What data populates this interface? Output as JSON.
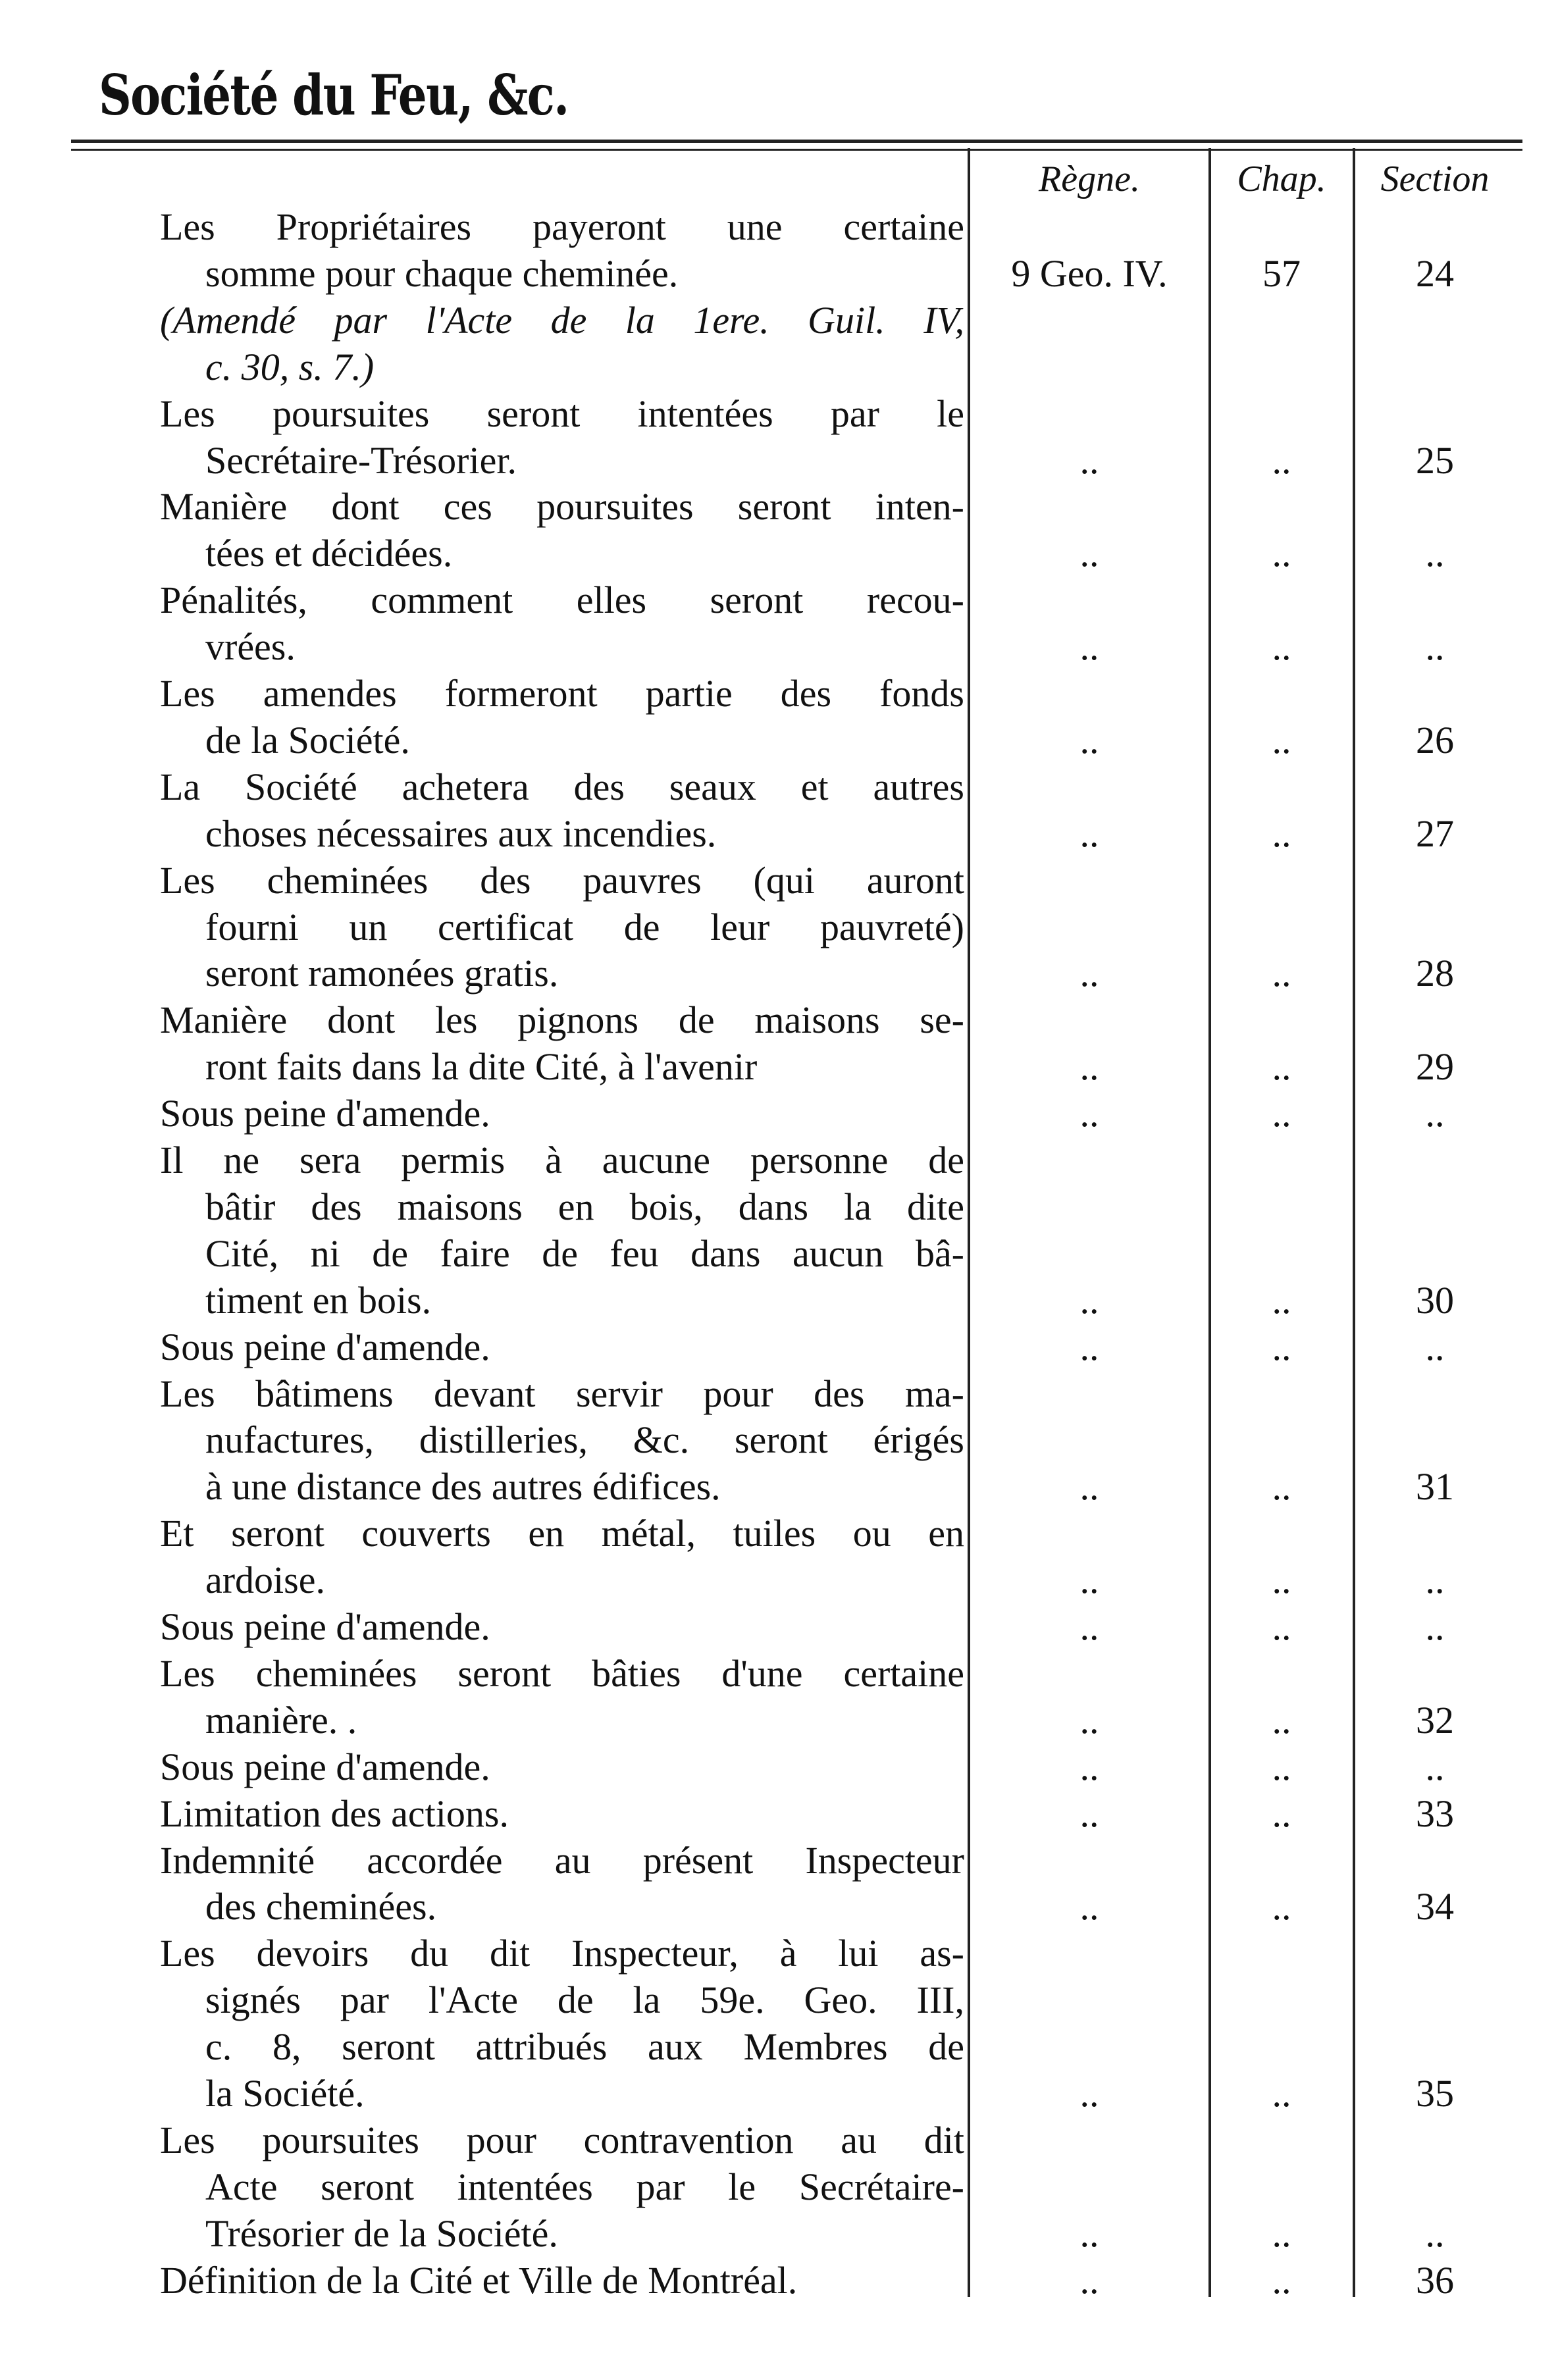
{
  "header": {
    "title": "Société du Feu, &c."
  },
  "columns": {
    "regne": "Règne.",
    "chap": "Chap.",
    "section": "Section"
  },
  "entries": [
    {
      "lines": [
        "Les Propriétaires payeront une certaine",
        "somme pour chaque cheminée."
      ],
      "regne": "9 Geo. IV.",
      "chap": "57",
      "section": "24"
    },
    {
      "lines": [
        "(Amendé par l'Acte de la 1ere. Guil. IV,",
        "c. 30, s. 7.)"
      ],
      "italic": true,
      "regne": "",
      "chap": "",
      "section": ""
    },
    {
      "lines": [
        "Les poursuites seront intentées par le",
        "Secrétaire-Trésorier."
      ],
      "regne": "..",
      "chap": "..",
      "section": "25"
    },
    {
      "lines": [
        "Manière dont ces poursuites seront inten-",
        "tées et décidées."
      ],
      "regne": "..",
      "chap": "..",
      "section": ".."
    },
    {
      "lines": [
        "Pénalités, comment elles seront recou-",
        "vrées."
      ],
      "regne": "..",
      "chap": "..",
      "section": ".."
    },
    {
      "lines": [
        "Les amendes formeront partie des fonds",
        "de la Société."
      ],
      "regne": "..",
      "chap": "..",
      "section": "26"
    },
    {
      "lines": [
        "La Société achetera des seaux et autres",
        "choses nécessaires aux incendies."
      ],
      "regne": "..",
      "chap": "..",
      "section": "27"
    },
    {
      "lines": [
        "Les cheminées des pauvres (qui auront",
        "fourni un certificat de leur pauvreté)",
        "seront ramonées gratis."
      ],
      "regne": "..",
      "chap": "..",
      "section": "28"
    },
    {
      "lines": [
        "Manière dont les pignons de maisons se-",
        "ront faits dans la dite Cité, à l'avenir"
      ],
      "regne": "..",
      "chap": "..",
      "section": "29"
    },
    {
      "lines": [
        "Sous peine d'amende."
      ],
      "regne": "..",
      "chap": "..",
      "section": ".."
    },
    {
      "lines": [
        "Il ne sera permis à aucune personne de",
        "bâtir des maisons en bois, dans la dite",
        "Cité, ni de faire de feu dans aucun bâ-",
        "timent en bois."
      ],
      "regne": "..",
      "chap": "..",
      "section": "30"
    },
    {
      "lines": [
        "Sous peine d'amende."
      ],
      "regne": "..",
      "chap": "..",
      "section": ".."
    },
    {
      "lines": [
        "Les bâtimens devant servir pour des ma-",
        "nufactures, distilleries, &c. seront érigés",
        "à une distance des autres édifices."
      ],
      "regne": "..",
      "chap": "..",
      "section": "31"
    },
    {
      "lines": [
        "Et seront couverts en métal, tuiles ou en",
        "ardoise."
      ],
      "regne": "..",
      "chap": "..",
      "section": ".."
    },
    {
      "lines": [
        "Sous peine d'amende."
      ],
      "regne": "..",
      "chap": "..",
      "section": ".."
    },
    {
      "lines": [
        "Les cheminées seront bâties d'une certaine",
        "manière. ."
      ],
      "regne": "..",
      "chap": "..",
      "section": "32"
    },
    {
      "lines": [
        "Sous peine d'amende."
      ],
      "regne": "..",
      "chap": "..",
      "section": ".."
    },
    {
      "lines": [
        "Limitation des actions."
      ],
      "regne": "..",
      "chap": "..",
      "section": "33"
    },
    {
      "lines": [
        "Indemnité accordée au présent Inspecteur",
        "des cheminées."
      ],
      "regne": "..",
      "chap": "..",
      "section": "34"
    },
    {
      "lines": [
        "Les devoirs du dit Inspecteur, à lui as-",
        "signés par l'Acte de la 59e. Geo. III,",
        "c. 8, seront attribués aux Membres de",
        "la Société."
      ],
      "regne": "..",
      "chap": "..",
      "section": "35"
    },
    {
      "lines": [
        "Les poursuites pour contravention au dit",
        "Acte seront intentées par le Secrétaire-",
        "Trésorier de la Société."
      ],
      "regne": "..",
      "chap": "..",
      "section": ".."
    },
    {
      "lines": [
        "Définition de la Cité et Ville de Montréal."
      ],
      "regne": "..",
      "chap": "..",
      "section": "36"
    }
  ]
}
